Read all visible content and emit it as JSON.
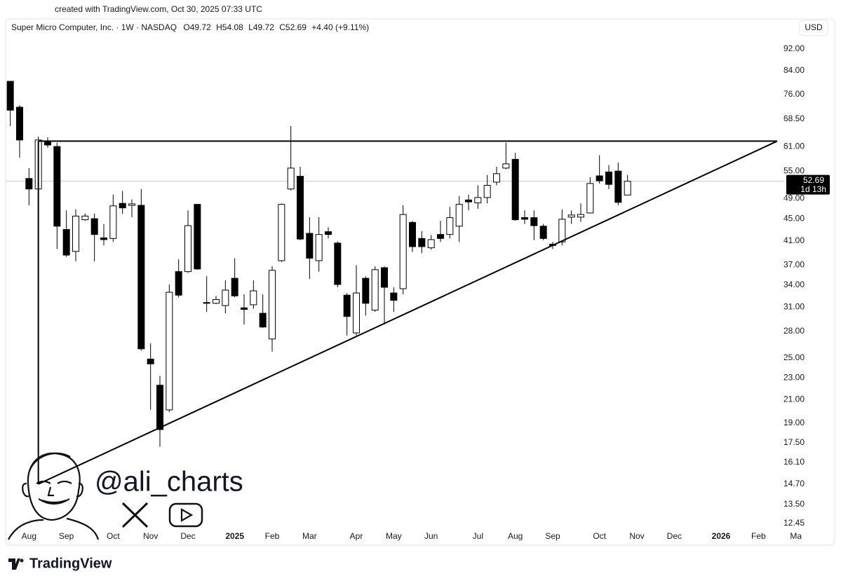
{
  "header": {
    "created": "created with TradingView.com, Oct 30, 2025 07:33 UTC",
    "currency": "USD",
    "watermark": "@ali_charts",
    "brand": "TradingView"
  },
  "chart_data": {
    "type": "candlestick",
    "title": "Super Micro Computer, Inc. · 1W · NASDAQ",
    "ohlc_labels": [
      "O",
      "H",
      "L",
      "C"
    ],
    "change": "+4.40 (+9.11%)",
    "countdown": "1d 13h",
    "log_scale": true,
    "up_color": "#ffffff",
    "down_color": "#000000",
    "series": [
      {
        "name": "Super Micro Computer, Inc.",
        "open": [
          80.3,
          72.0,
          53.3,
          51.0,
          62.3,
          61.0,
          43.0,
          39.2,
          44.8,
          45.0,
          41.5,
          41.4,
          48.0,
          47.6,
          47.6,
          24.9,
          22.3,
          20.1,
          36.0,
          36.0,
          47.8,
          31.6,
          31.5,
          31.2,
          35.0,
          30.9,
          31.3,
          30.2,
          27.1,
          37.7,
          51.0,
          53.8,
          42.3,
          37.7,
          42.6,
          40.6,
          32.6,
          27.8,
          35.0,
          30.6,
          36.6,
          32.9,
          33.5,
          44.3,
          41.4,
          39.8,
          42.1,
          42.1,
          43.6,
          48.7,
          48.1,
          49.2,
          52.5,
          55.7,
          57.8,
          45.2,
          45.2,
          43.6,
          40.4,
          40.8,
          45.3,
          45.3,
          46.1,
          53.9,
          54.8,
          55.0,
          49.72
        ],
        "high": [
          80.3,
          72.6,
          55.7,
          63.6,
          63.4,
          62.0,
          46.6,
          46.8,
          46.0,
          46.0,
          44.0,
          49.8,
          50.6,
          48.8,
          51.0,
          26.6,
          23.2,
          34.1,
          37.9,
          46.6,
          47.8,
          35.3,
          32.5,
          34.7,
          38.1,
          32.7,
          34.7,
          32.7,
          36.8,
          48.0,
          66.5,
          56.0,
          45.3,
          45.3,
          43.4,
          40.9,
          32.9,
          37.0,
          35.3,
          36.8,
          36.8,
          33.7,
          47.6,
          44.6,
          42.7,
          42.0,
          44.6,
          47.3,
          49.5,
          49.8,
          51.8,
          54.1,
          56.0,
          62.0,
          59.4,
          46.6,
          46.6,
          44.0,
          40.8,
          46.8,
          46.6,
          48.0,
          53.6,
          58.8,
          56.4,
          57.0,
          54.08
        ],
        "low": [
          66.5,
          58.2,
          47.6,
          50.5,
          60.7,
          39.6,
          38.3,
          37.6,
          44.6,
          37.6,
          40.2,
          40.8,
          45.9,
          45.3,
          25.8,
          20.1,
          17.2,
          19.9,
          32.3,
          35.8,
          36.3,
          30.4,
          31.4,
          30.2,
          32.3,
          28.8,
          30.8,
          28.4,
          25.7,
          37.5,
          50.7,
          41.1,
          34.9,
          36.0,
          41.4,
          33.7,
          27.5,
          27.5,
          29.9,
          30.4,
          28.8,
          30.4,
          32.7,
          39.1,
          38.9,
          39.5,
          40.8,
          41.4,
          40.8,
          46.6,
          46.9,
          48.0,
          51.8,
          55.4,
          44.6,
          44.0,
          41.1,
          41.1,
          39.6,
          40.2,
          44.0,
          44.4,
          46.0,
          52.2,
          51.0,
          47.6,
          49.72
        ],
        "close": [
          71.1,
          62.7,
          51.0,
          62.7,
          61.4,
          43.6,
          38.6,
          45.5,
          45.5,
          42.1,
          41.2,
          47.5,
          47.1,
          47.9,
          26.0,
          24.4,
          18.5,
          33.0,
          32.6,
          43.7,
          36.4,
          31.5,
          32.0,
          33.3,
          32.5,
          30.7,
          33.2,
          28.5,
          36.2,
          47.8,
          55.7,
          41.3,
          38.1,
          42.1,
          42.1,
          34.1,
          29.8,
          32.9,
          31.5,
          36.3,
          33.7,
          31.9,
          45.8,
          40.0,
          40.0,
          41.2,
          41.4,
          45.2,
          47.8,
          48.3,
          49.2,
          51.8,
          54.4,
          56.7,
          44.8,
          44.9,
          43.7,
          41.4,
          40.2,
          44.9,
          45.7,
          45.8,
          52.2,
          52.8,
          52.0,
          48.2,
          52.69
        ]
      }
    ],
    "trendlines": [
      {
        "x": [
          3,
          82
        ],
        "y": [
          62.4,
          62.4
        ]
      },
      {
        "x": [
          3,
          82
        ],
        "y": [
          14.7,
          62.4
        ]
      },
      {
        "x": [
          3,
          3
        ],
        "y": [
          62.4,
          14.7
        ]
      }
    ],
    "xlim": [
      -0.5,
      82.75
    ],
    "xticks": [
      {
        "value": 2,
        "label": "Aug"
      },
      {
        "value": 6,
        "label": "Sep"
      },
      {
        "value": 11,
        "label": "Oct"
      },
      {
        "value": 15,
        "label": "Nov"
      },
      {
        "value": 19,
        "label": "Dec"
      },
      {
        "value": 24,
        "label": "2025"
      },
      {
        "value": 28,
        "label": "Feb"
      },
      {
        "value": 32,
        "label": "Mar"
      },
      {
        "value": 37,
        "label": "Apr"
      },
      {
        "value": 41,
        "label": "May"
      },
      {
        "value": 45,
        "label": "Jun"
      },
      {
        "value": 50,
        "label": "Jul"
      },
      {
        "value": 54,
        "label": "Aug"
      },
      {
        "value": 58,
        "label": "Sep"
      },
      {
        "value": 63,
        "label": "Oct"
      },
      {
        "value": 67,
        "label": "Nov"
      },
      {
        "value": 71,
        "label": "Dec"
      },
      {
        "value": 76,
        "label": "2026"
      },
      {
        "value": 80,
        "label": "Feb"
      },
      {
        "value": 84,
        "label": "Ma"
      }
    ],
    "ylim": [
      12.09,
      97.6
    ],
    "yticks": [
      12.45,
      {
        "value": 13.5,
        "label": "13.50"
      },
      {
        "value": 14.7,
        "label": "14.70"
      },
      {
        "value": 16.1,
        "label": "16.10"
      },
      {
        "value": 17.5,
        "label": "17.50"
      },
      {
        "value": 19,
        "label": "19.00"
      },
      {
        "value": 21,
        "label": "21.00"
      },
      {
        "value": 23,
        "label": "23.00"
      },
      {
        "value": 25,
        "label": "25.00"
      },
      {
        "value": 28,
        "label": "28.00"
      },
      {
        "value": 31,
        "label": "31.00"
      },
      {
        "value": 34,
        "label": "34.00"
      },
      {
        "value": 37,
        "label": "37.00"
      },
      {
        "value": 41,
        "label": "41.00"
      },
      {
        "value": 45,
        "label": "45.00"
      },
      {
        "value": 49,
        "label": "49.00"
      },
      {
        "value": 55,
        "label": "55.00"
      },
      {
        "value": 61,
        "label": "61.00"
      },
      {
        "value": 68.5,
        "label": "68.50"
      },
      {
        "value": 76,
        "label": "76.00"
      },
      {
        "value": 84,
        "label": "84.00"
      },
      {
        "value": 92,
        "label": "92.00"
      }
    ]
  }
}
